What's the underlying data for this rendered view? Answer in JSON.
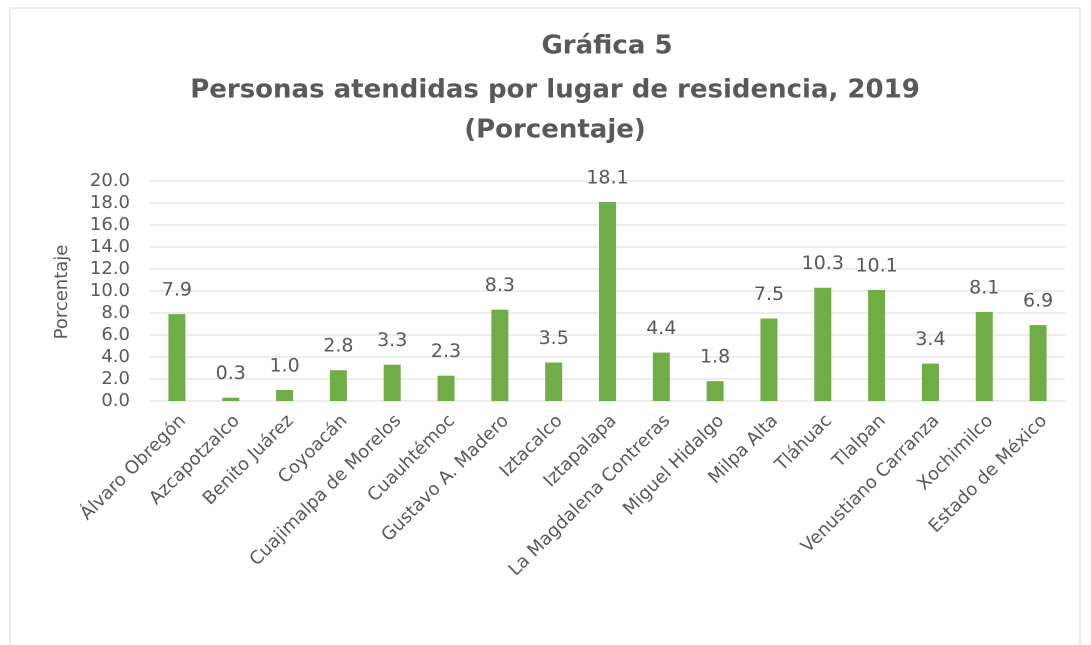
{
  "chart_data": {
    "type": "bar",
    "title": [
      "Gráfica 5",
      "Personas atendidas por lugar de residencia, 2019",
      "(Porcentaje)"
    ],
    "y_label": "Porcentaje",
    "categories": [
      "Álvaro Obregón",
      "Azcapotzalco",
      "Benito Juárez",
      "Coyoacán",
      "Cuajimalpa de Morelos",
      "Cuauhtémoc",
      "Gustavo A. Madero",
      "Iztacalco",
      "Iztapalapa",
      "La Magdalena Contreras",
      "Miguel Hidalgo",
      "Milpa Alta",
      "Tláhuac",
      "Tlalpan",
      "Venustiano Carranza",
      "Xochimilco",
      "Estado de México"
    ],
    "values": [
      7.9,
      0.3,
      1.0,
      2.8,
      3.3,
      2.3,
      8.3,
      3.5,
      18.1,
      4.4,
      1.8,
      7.5,
      10.3,
      10.1,
      3.4,
      8.1,
      6.9
    ],
    "value_labels": [
      "7.9",
      "0.3",
      "1.0",
      "2.8",
      "3.3",
      "2.3",
      "8.3",
      "3.5",
      "18.1",
      "4.4",
      "1.8",
      "7.5",
      "10.3",
      "10.1",
      "3.4",
      "8.1",
      "6.9"
    ],
    "color": "#70ad47",
    "ylim": [
      0,
      20
    ],
    "yticks": [
      {
        "value": 0,
        "label": "0.0"
      },
      {
        "value": 2,
        "label": "2.0"
      },
      {
        "value": 4,
        "label": "4.0"
      },
      {
        "value": 6,
        "label": "6.0"
      },
      {
        "value": 8,
        "label": "8.0"
      },
      {
        "value": 10,
        "label": "10.0"
      },
      {
        "value": 12,
        "label": "12.0"
      },
      {
        "value": 14,
        "label": "14.0"
      },
      {
        "value": 16,
        "label": "16.0"
      },
      {
        "value": 18,
        "label": "18.0"
      },
      {
        "value": 20,
        "label": "20.0"
      }
    ],
    "grid": true
  }
}
